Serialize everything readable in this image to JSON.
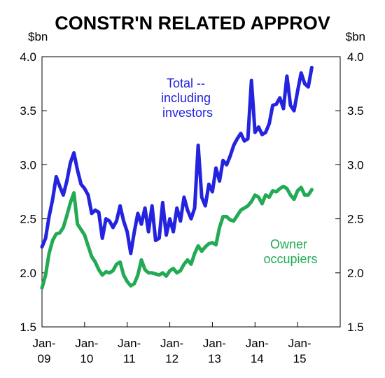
{
  "chart_data": {
    "type": "line",
    "title": "CONSTR'N RELATED APPROV",
    "ylabel_left": "$bn",
    "ylabel_right": "$bn",
    "ylim": [
      1.5,
      4.0
    ],
    "yticks": [
      "1.5",
      "2.0",
      "2.5",
      "3.0",
      "3.5",
      "4.0"
    ],
    "x_tick_labels": [
      {
        "month": "Jan-",
        "year": "09"
      },
      {
        "month": "Jan-",
        "year": "10"
      },
      {
        "month": "Jan-",
        "year": "11"
      },
      {
        "month": "Jan-",
        "year": "12"
      },
      {
        "month": "Jan-",
        "year": "13"
      },
      {
        "month": "Jan-",
        "year": "14"
      },
      {
        "month": "Jan-",
        "year": "15"
      }
    ],
    "x_start": "2009-01",
    "x_end": "2016-01",
    "grid": false,
    "series": [
      {
        "name_lines": [
          "Total --",
          "including",
          "investors"
        ],
        "color": "#2323e0",
        "points": [
          [
            "2009-01",
            2.24
          ],
          [
            "2009-02",
            2.32
          ],
          [
            "2009-03",
            2.52
          ],
          [
            "2009-04",
            2.68
          ],
          [
            "2009-05",
            2.89
          ],
          [
            "2009-06",
            2.8
          ],
          [
            "2009-07",
            2.72
          ],
          [
            "2009-08",
            2.85
          ],
          [
            "2009-09",
            3.02
          ],
          [
            "2009-10",
            3.11
          ],
          [
            "2009-11",
            2.95
          ],
          [
            "2009-12",
            2.82
          ],
          [
            "2010-01",
            2.78
          ],
          [
            "2010-02",
            2.72
          ],
          [
            "2010-03",
            2.55
          ],
          [
            "2010-04",
            2.58
          ],
          [
            "2010-05",
            2.56
          ],
          [
            "2010-06",
            2.32
          ],
          [
            "2010-07",
            2.5
          ],
          [
            "2010-08",
            2.48
          ],
          [
            "2010-09",
            2.42
          ],
          [
            "2010-10",
            2.48
          ],
          [
            "2010-11",
            2.62
          ],
          [
            "2010-12",
            2.48
          ],
          [
            "2011-01",
            2.38
          ],
          [
            "2011-02",
            2.18
          ],
          [
            "2011-03",
            2.38
          ],
          [
            "2011-04",
            2.55
          ],
          [
            "2011-05",
            2.45
          ],
          [
            "2011-06",
            2.6
          ],
          [
            "2011-07",
            2.38
          ],
          [
            "2011-08",
            2.62
          ],
          [
            "2011-09",
            2.3
          ],
          [
            "2011-10",
            2.32
          ],
          [
            "2011-11",
            2.65
          ],
          [
            "2011-12",
            2.35
          ],
          [
            "2012-01",
            2.5
          ],
          [
            "2012-02",
            2.38
          ],
          [
            "2012-03",
            2.6
          ],
          [
            "2012-04",
            2.48
          ],
          [
            "2012-05",
            2.7
          ],
          [
            "2012-06",
            2.58
          ],
          [
            "2012-07",
            2.5
          ],
          [
            "2012-08",
            2.6
          ],
          [
            "2012-09",
            3.18
          ],
          [
            "2012-10",
            2.7
          ],
          [
            "2012-11",
            2.62
          ],
          [
            "2012-12",
            2.82
          ],
          [
            "2013-01",
            2.75
          ],
          [
            "2013-02",
            2.97
          ],
          [
            "2013-03",
            2.85
          ],
          [
            "2013-04",
            3.04
          ],
          [
            "2013-05",
            3.0
          ],
          [
            "2013-06",
            3.08
          ],
          [
            "2013-07",
            3.18
          ],
          [
            "2013-08",
            3.24
          ],
          [
            "2013-09",
            3.29
          ],
          [
            "2013-10",
            3.22
          ],
          [
            "2013-11",
            3.24
          ],
          [
            "2013-12",
            3.78
          ],
          [
            "2014-01",
            3.3
          ],
          [
            "2014-02",
            3.35
          ],
          [
            "2014-03",
            3.28
          ],
          [
            "2014-04",
            3.3
          ],
          [
            "2014-05",
            3.38
          ],
          [
            "2014-06",
            3.55
          ],
          [
            "2014-07",
            3.56
          ],
          [
            "2014-08",
            3.62
          ],
          [
            "2014-09",
            3.52
          ],
          [
            "2014-10",
            3.82
          ],
          [
            "2014-11",
            3.55
          ],
          [
            "2014-12",
            3.5
          ],
          [
            "2015-01",
            3.68
          ],
          [
            "2015-02",
            3.85
          ],
          [
            "2015-03",
            3.75
          ],
          [
            "2015-04",
            3.72
          ],
          [
            "2015-05",
            3.9
          ]
        ]
      },
      {
        "name_lines": [
          "Owner",
          "occupiers"
        ],
        "color": "#22aa55",
        "points": [
          [
            "2009-01",
            1.86
          ],
          [
            "2009-02",
            1.98
          ],
          [
            "2009-03",
            2.18
          ],
          [
            "2009-04",
            2.3
          ],
          [
            "2009-05",
            2.36
          ],
          [
            "2009-06",
            2.37
          ],
          [
            "2009-07",
            2.42
          ],
          [
            "2009-08",
            2.53
          ],
          [
            "2009-09",
            2.65
          ],
          [
            "2009-10",
            2.74
          ],
          [
            "2009-11",
            2.45
          ],
          [
            "2009-12",
            2.4
          ],
          [
            "2010-01",
            2.35
          ],
          [
            "2010-02",
            2.25
          ],
          [
            "2010-03",
            2.15
          ],
          [
            "2010-04",
            2.1
          ],
          [
            "2010-05",
            2.03
          ],
          [
            "2010-06",
            1.98
          ],
          [
            "2010-07",
            2.01
          ],
          [
            "2010-08",
            2.0
          ],
          [
            "2010-09",
            2.02
          ],
          [
            "2010-10",
            2.08
          ],
          [
            "2010-11",
            2.1
          ],
          [
            "2010-12",
            1.98
          ],
          [
            "2011-01",
            1.92
          ],
          [
            "2011-02",
            1.88
          ],
          [
            "2011-03",
            1.9
          ],
          [
            "2011-04",
            1.98
          ],
          [
            "2011-05",
            2.12
          ],
          [
            "2011-06",
            2.03
          ],
          [
            "2011-07",
            2.0
          ],
          [
            "2011-08",
            2.0
          ],
          [
            "2011-09",
            1.99
          ],
          [
            "2011-10",
            1.98
          ],
          [
            "2011-11",
            2.0
          ],
          [
            "2011-12",
            1.97
          ],
          [
            "2012-01",
            2.02
          ],
          [
            "2012-02",
            2.04
          ],
          [
            "2012-03",
            2.0
          ],
          [
            "2012-04",
            2.02
          ],
          [
            "2012-05",
            2.08
          ],
          [
            "2012-06",
            2.12
          ],
          [
            "2012-07",
            2.08
          ],
          [
            "2012-08",
            2.18
          ],
          [
            "2012-09",
            2.25
          ],
          [
            "2012-10",
            2.2
          ],
          [
            "2012-11",
            2.24
          ],
          [
            "2012-12",
            2.27
          ],
          [
            "2013-01",
            2.28
          ],
          [
            "2013-02",
            2.26
          ],
          [
            "2013-03",
            2.42
          ],
          [
            "2013-04",
            2.52
          ],
          [
            "2013-05",
            2.52
          ],
          [
            "2013-06",
            2.49
          ],
          [
            "2013-07",
            2.48
          ],
          [
            "2013-08",
            2.53
          ],
          [
            "2013-09",
            2.58
          ],
          [
            "2013-10",
            2.6
          ],
          [
            "2013-11",
            2.62
          ],
          [
            "2013-12",
            2.66
          ],
          [
            "2014-01",
            2.72
          ],
          [
            "2014-02",
            2.7
          ],
          [
            "2014-03",
            2.64
          ],
          [
            "2014-04",
            2.72
          ],
          [
            "2014-05",
            2.7
          ],
          [
            "2014-06",
            2.76
          ],
          [
            "2014-07",
            2.75
          ],
          [
            "2014-08",
            2.78
          ],
          [
            "2014-09",
            2.8
          ],
          [
            "2014-10",
            2.78
          ],
          [
            "2014-11",
            2.72
          ],
          [
            "2014-12",
            2.68
          ],
          [
            "2015-01",
            2.76
          ],
          [
            "2015-02",
            2.79
          ],
          [
            "2015-03",
            2.72
          ],
          [
            "2015-04",
            2.72
          ],
          [
            "2015-05",
            2.77
          ]
        ]
      }
    ]
  }
}
